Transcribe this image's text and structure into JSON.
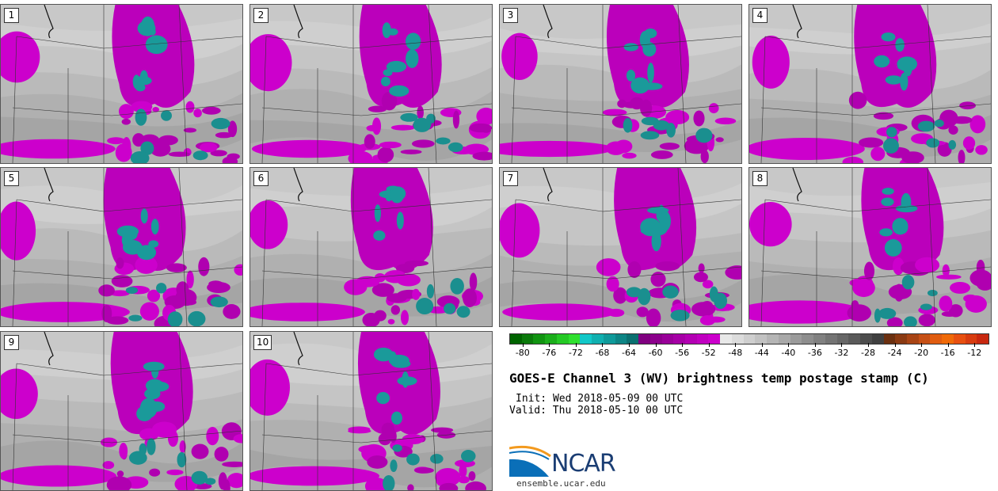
{
  "panels": [
    {
      "label": "1"
    },
    {
      "label": "2"
    },
    {
      "label": "3"
    },
    {
      "label": "4"
    },
    {
      "label": "5"
    },
    {
      "label": "6"
    },
    {
      "label": "7"
    },
    {
      "label": "8"
    },
    {
      "label": "9"
    },
    {
      "label": "10"
    }
  ],
  "colorbar": {
    "colors": [
      "#006400",
      "#0b7a0b",
      "#119411",
      "#1bae1b",
      "#25c925",
      "#2fe02f",
      "#12c8c8",
      "#10b0b0",
      "#0f9a9a",
      "#0d8585",
      "#0b7070",
      "#800080",
      "#8c008c",
      "#990099",
      "#a600a6",
      "#b300b3",
      "#c000c0",
      "#cc00cc",
      "#e8e8e8",
      "#dcdcdc",
      "#cfcfcf",
      "#c2c2c2",
      "#b5b5b5",
      "#a8a8a8",
      "#9b9b9b",
      "#8e8e8e",
      "#818181",
      "#747474",
      "#676767",
      "#5a5a5a",
      "#4d4d4d",
      "#404040",
      "#6b3010",
      "#8a3a12",
      "#a84414",
      "#c65016",
      "#e05c10",
      "#f06a08",
      "#e85010",
      "#d83c10",
      "#c82810"
    ],
    "ticks": [
      "-80",
      "-76",
      "-72",
      "-68",
      "-64",
      "-60",
      "-56",
      "-52",
      "-48",
      "-44",
      "-40",
      "-36",
      "-32",
      "-28",
      "-24",
      "-20",
      "-16",
      "-12"
    ]
  },
  "title": "GOES-E Channel 3 (WV) brightness temp postage stamp (C)",
  "init_line": "Init: Wed 2018-05-09 00 UTC",
  "valid_line": "Valid: Thu 2018-05-10 00 UTC",
  "logo": {
    "name": "NCAR",
    "url": "ensemble.ucar.edu"
  }
}
